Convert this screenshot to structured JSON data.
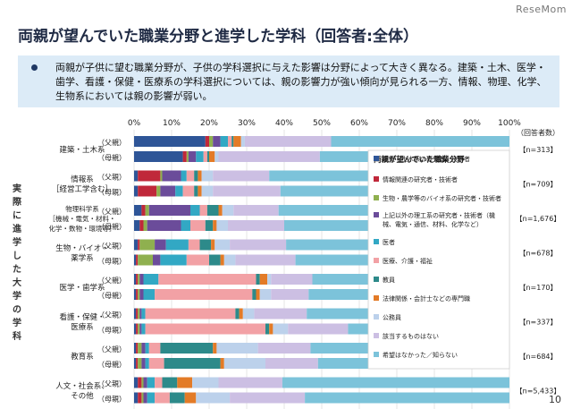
{
  "header": {
    "logo": "ReseMom",
    "title": "両親が望んでいた職業分野と進学した学科（回答者:全体）",
    "summary": "両親が子供に望む職業分野が、子供の学科選択に与えた影響は分野によって大きく異なる。建築・土木、医学・歯学、看護・保健・医療系の学科選択については、親の影響力が強い傾向が見られる一方、情報、物理、化学、生物系においては親の影響が弱い。"
  },
  "page_number": "10",
  "chart_data": {
    "type": "bar",
    "orientation": "horizontal",
    "stacked": true,
    "xlim": [
      0,
      100
    ],
    "x_ticks": [
      "0%",
      "10%",
      "20%",
      "30%",
      "40%",
      "50%",
      "60%",
      "70%",
      "80%",
      "90%",
      "100%"
    ],
    "y_axis_label": "実際に進学した大学の学科",
    "respondents_header": "（回答者数）",
    "legend_title": "両親が望んでいた職業分野",
    "series_names": [
      "建築・土木系の研究者・技術者",
      "情報関連の研究者・技術者",
      "生物・農学等のバイオ系の研究者・技術者",
      "上記以外の理工系の研究者・技術者（機械、電気・通信、材料、化学など）",
      "医者",
      "医療、介護・福祉",
      "教員",
      "法律関係・会計士などの専門職",
      "公務員",
      "該当するものはない",
      "希望はなかった／知らない"
    ],
    "series_colors": [
      "#2e5597",
      "#c0283a",
      "#8fb04f",
      "#6b4c9a",
      "#32a8c4",
      "#f2a1a5",
      "#2d8a8a",
      "#e37b27",
      "#bcd1eb",
      "#ccbfe3",
      "#7cc3da"
    ],
    "groups": [
      {
        "category": "建築・土木系",
        "n": "【n=313】",
        "rows": [
          {
            "label": "（父親）",
            "values": [
              19,
              1,
              1,
              2,
              2,
              1,
              0.5,
              2,
              1,
              23,
              47.5
            ]
          },
          {
            "label": "（母親）",
            "values": [
              13,
              1,
              0.5,
              2,
              2,
              1,
              0.5,
              1.5,
              1,
              27,
              50.5
            ]
          }
        ]
      },
      {
        "category": "情報系\n［経営工学含む］",
        "n": "【n=709】",
        "rows": [
          {
            "label": "（父親）",
            "values": [
              1,
              6,
              0.5,
              5,
              1.5,
              2,
              1,
              1,
              3,
              15,
              64
            ]
          },
          {
            "label": "（母親）",
            "values": [
              1,
              5,
              1,
              4,
              2,
              3,
              1,
              1,
              3,
              18,
              61
            ]
          }
        ]
      },
      {
        "category": "物理科学系\n［機械・電気・材料・\n化学・数物・環境等］",
        "n": "【n=1,676】",
        "rows": [
          {
            "label": "（父親）",
            "values": [
              2,
              1,
              1,
              11,
              2.5,
              2,
              3,
              1,
              3,
              12,
              61.5
            ]
          },
          {
            "label": "（母親）",
            "values": [
              1.5,
              1,
              1,
              9,
              2.5,
              4,
              2,
              1,
              3,
              15,
              60
            ]
          }
        ]
      },
      {
        "category": "生物・バイオ・\n薬学系",
        "n": "【n=678】",
        "rows": [
          {
            "label": "（父親）",
            "values": [
              1,
              0.5,
              4,
              3,
              6,
              3,
              3,
              1,
              4,
              15,
              59.5
            ]
          },
          {
            "label": "（母親）",
            "values": [
              0.5,
              0.5,
              4,
              2,
              7,
              6,
              3,
              1,
              3,
              16,
              57
            ]
          }
        ]
      },
      {
        "category": "医学・歯学系",
        "n": "【n=170】",
        "rows": [
          {
            "label": "（父親）",
            "values": [
              0.5,
              0.5,
              0.5,
              1,
              4,
              26,
              1,
              2,
              1,
              11,
              52.5
            ]
          },
          {
            "label": "（母親）",
            "values": [
              0.5,
              0.5,
              0.5,
              1,
              3,
              26,
              1,
              1,
              3,
              10,
              53.5
            ]
          }
        ]
      },
      {
        "category": "看護・保健・\n医療系",
        "n": "【n=337】",
        "rows": [
          {
            "label": "（父親）",
            "values": [
              0.5,
              0.5,
              0.5,
              0.5,
              1,
              24,
              1,
              1,
              3,
              14,
              54
            ]
          },
          {
            "label": "（母親）",
            "values": [
              0.5,
              0.5,
              0.5,
              0.5,
              1,
              32,
              1,
              1,
              4,
              16,
              43
            ]
          }
        ]
      },
      {
        "category": "教育系",
        "n": "【n=684】",
        "rows": [
          {
            "label": "（父親）",
            "values": [
              0.5,
              0.5,
              1,
              1,
              1,
              3,
              14,
              1,
              11,
              14,
              53
            ]
          },
          {
            "label": "（母親）",
            "values": [
              0.5,
              0.5,
              1,
              1,
              1,
              4,
              15,
              1,
              11,
              14,
              51
            ]
          }
        ]
      },
      {
        "category": "人文・社会系、\nその他",
        "n": "【n=5,433】",
        "rows": [
          {
            "label": "（父親）",
            "values": [
              1,
              1,
              0.5,
              1,
              2,
              2,
              4,
              4,
              7,
              17,
              60.5
            ]
          },
          {
            "label": "（母親）",
            "values": [
              1,
              1,
              0.5,
              1,
              2,
              4,
              4,
              3,
              9,
              20,
              54.5
            ]
          }
        ]
      }
    ]
  }
}
